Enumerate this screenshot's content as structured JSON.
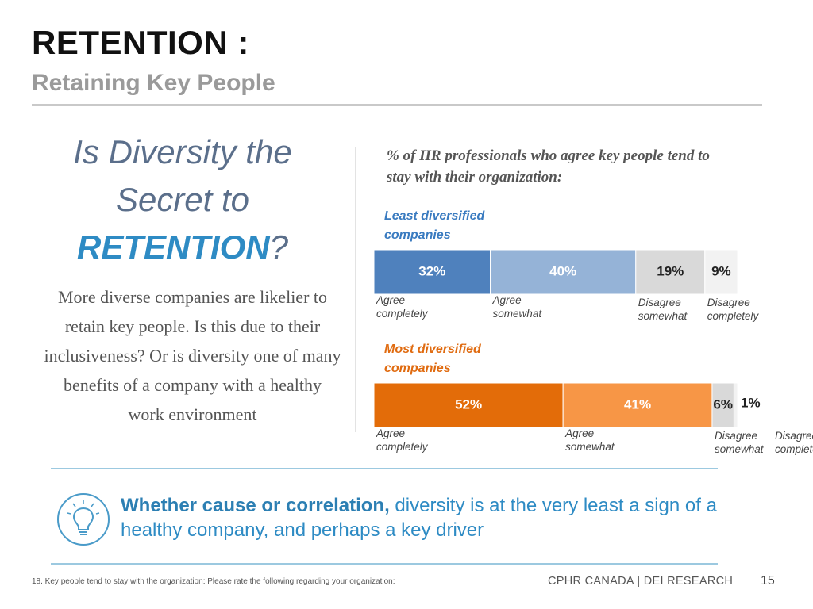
{
  "header": {
    "title": "RETENTION :",
    "subtitle": "Retaining Key People"
  },
  "left_panel": {
    "headline_line1": "Is Diversity the",
    "headline_line2": "Secret to",
    "headline_emph": "RETENTION",
    "headline_q": "?",
    "body": "More diverse companies are likelier to retain key people. Is this due to their inclusiveness? Or is diversity one of many benefits of a company with a healthy work environment"
  },
  "chart_data": {
    "type": "bar",
    "orientation": "horizontal-stacked-100",
    "title": "% of HR professionals who agree key people tend to stay with their organization:",
    "unit": "%",
    "series": [
      {
        "name": "Least diversified companies",
        "segments": [
          {
            "label": "Agree completely",
            "value": 32,
            "display": "32%",
            "color": "#4f81bd",
            "text_color": "#ffffff"
          },
          {
            "label": "Agree somewhat",
            "value": 40,
            "display": "40%",
            "color": "#95b3d7",
            "text_color": "#ffffff"
          },
          {
            "label": "Disagree somewhat",
            "value": 19,
            "display": "19%",
            "color": "#d9d9d9",
            "text_color": "#222222"
          },
          {
            "label": "Disagree completely",
            "value": 9,
            "display": "9%",
            "color": "#f2f2f2",
            "text_color": "#222222"
          }
        ]
      },
      {
        "name": "Most diversified companies",
        "segments": [
          {
            "label": "Agree completely",
            "value": 52,
            "display": "52%",
            "color": "#e36c09",
            "text_color": "#ffffff"
          },
          {
            "label": "Agree somewhat",
            "value": 41,
            "display": "41%",
            "color": "#f79646",
            "text_color": "#ffffff"
          },
          {
            "label": "Disagree somewhat",
            "value": 6,
            "display": "6%",
            "color": "#d9d9d9",
            "text_color": "#222222"
          },
          {
            "label": "Disagree completely",
            "value": 1,
            "display": "1%",
            "color": "#f2f2f2",
            "text_color": "#222222"
          }
        ]
      }
    ]
  },
  "takeaway": {
    "bold": "Whether cause or correlation,",
    "rest": " diversity is at the very least a sign of a healthy company, and perhaps a key driver"
  },
  "footer": {
    "footnote": "18.  Key people tend to stay with the organization: Please rate the following regarding your organization:",
    "brand": "CPHR CANADA  |  DEI RESEARCH",
    "page": "15"
  },
  "colors": {
    "accent_blue": "#2e8bc4",
    "least_label": "#3a7bc0",
    "most_label": "#e06b10"
  },
  "icons": {
    "takeaway_icon": "lightbulb-icon"
  }
}
